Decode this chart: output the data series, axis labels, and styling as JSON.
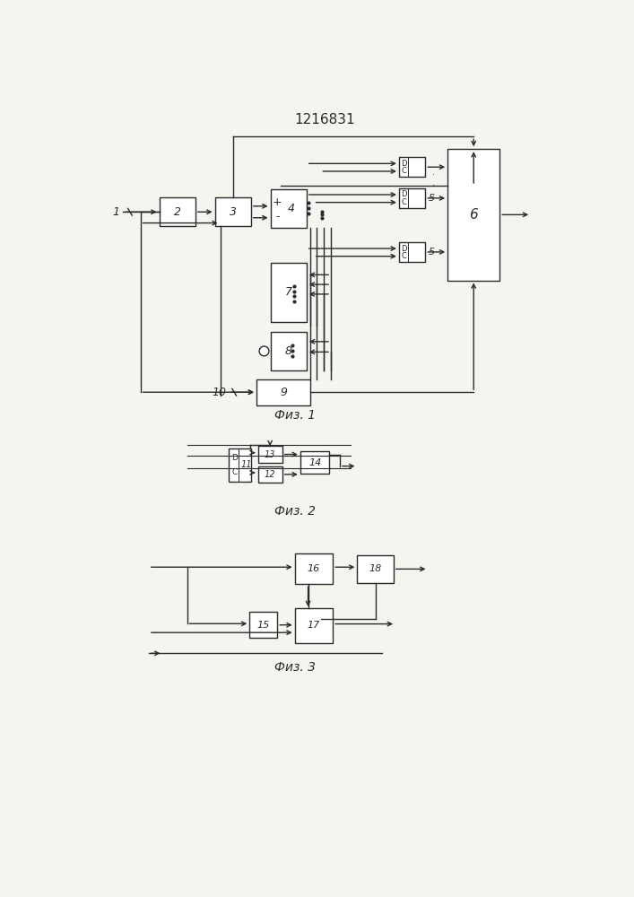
{
  "title": "1216831",
  "fig1_caption": "Физ. 1",
  "fig2_caption": "Физ. 2",
  "fig3_caption": "Физ. 3",
  "line_color": "#2a2a2a",
  "box_color": "#ffffff",
  "box_edge": "#2a2a2a",
  "text_color": "#2a2a2a",
  "bg_color": "#f5f5f0"
}
